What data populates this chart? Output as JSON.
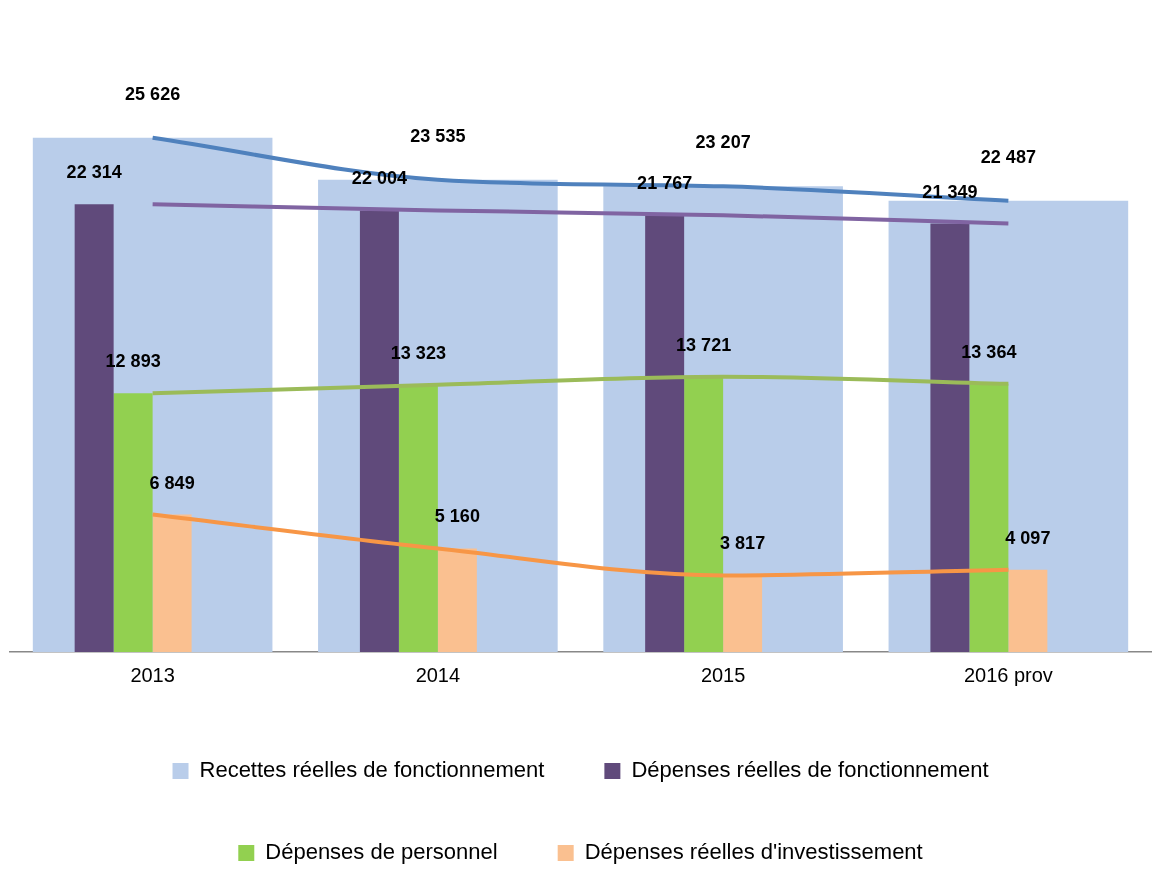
{
  "chart_data": {
    "type": "bar",
    "categories": [
      "2013",
      "2014",
      "2015",
      "2016 prov"
    ],
    "series": [
      {
        "name": "Recettes réelles de fonctionnement",
        "color": "#b9cdea",
        "values": [
          25626,
          23535,
          23207,
          22487
        ],
        "value_labels": [
          "25 626",
          "23 535",
          "23 207",
          "22 487"
        ]
      },
      {
        "name": "Dépenses réelles de fonctionnement",
        "color": "#604a7b",
        "values": [
          22314,
          22004,
          21767,
          21349
        ],
        "value_labels": [
          "22 314",
          "22 004",
          "21 767",
          "21 349"
        ]
      },
      {
        "name": "Dépenses de personnel",
        "color": "#92d050",
        "values": [
          12893,
          13323,
          13721,
          13364
        ],
        "value_labels": [
          "12 893",
          "13 323",
          "13 721",
          "13 364"
        ]
      },
      {
        "name": "Dépenses réelles d'investissement",
        "color": "#fac090",
        "values": [
          6849,
          5160,
          3817,
          4097
        ],
        "value_labels": [
          "6 849",
          "5 160",
          "3 817",
          "4 097"
        ]
      },
      {
        "type": "line",
        "color": "#4f81bd",
        "values": [
          25626,
          23535,
          23207,
          22487
        ]
      },
      {
        "type": "line",
        "color": "#8064a2",
        "values": [
          22314,
          22004,
          21767,
          21349
        ]
      },
      {
        "type": "line",
        "color": "#9bbb59",
        "values": [
          12893,
          13323,
          13721,
          13364
        ]
      },
      {
        "type": "line",
        "color": "#f79646",
        "values": [
          6849,
          5160,
          3817,
          4097
        ]
      }
    ],
    "legend": "bottom",
    "tick_labels": "x",
    "grid": false
  }
}
